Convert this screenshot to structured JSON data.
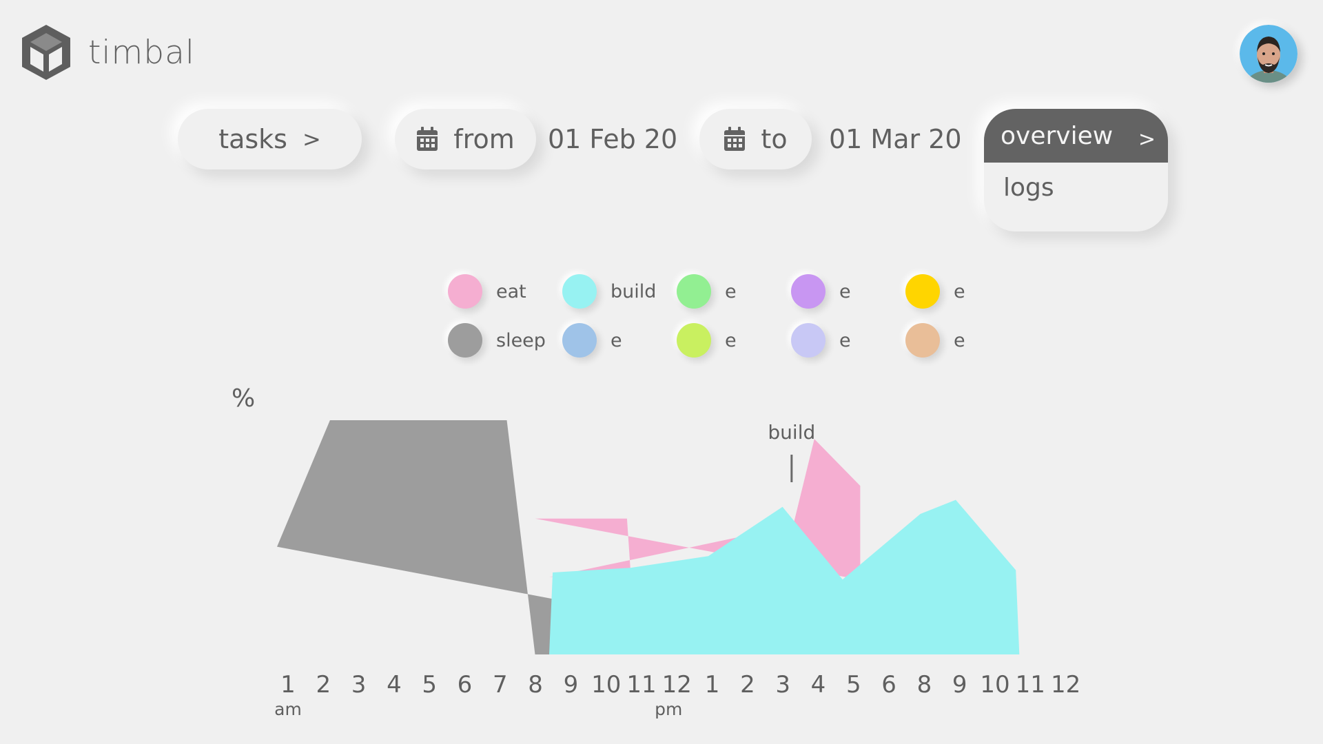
{
  "app": {
    "name": "timbal"
  },
  "toolbar": {
    "tasks_label": "tasks",
    "tasks_arrow": ">",
    "from_label": "from",
    "from_date": "01 Feb 20",
    "to_label": "to",
    "to_date": "01 Mar 20"
  },
  "view_menu": {
    "active": {
      "label": "overview",
      "arrow": ">"
    },
    "items": [
      {
        "label": "logs"
      }
    ]
  },
  "legend": [
    {
      "label": "eat",
      "color": "#f5aed1"
    },
    {
      "label": "build",
      "color": "#97f2f2"
    },
    {
      "label": "e",
      "color": "#92ef92"
    },
    {
      "label": "e",
      "color": "#c896f2"
    },
    {
      "label": "e",
      "color": "#ffd500"
    },
    {
      "label": "sleep",
      "color": "#9d9d9d"
    },
    {
      "label": "e",
      "color": "#9fc3e8"
    },
    {
      "label": "e",
      "color": "#c9f060"
    },
    {
      "label": "e",
      "color": "#c8c8f5"
    },
    {
      "label": "e",
      "color": "#e9be98"
    }
  ],
  "chart": {
    "y_unit": "%",
    "annotation": "build"
  },
  "chart_data": {
    "type": "area",
    "y_unit": "%",
    "x_ticks": [
      "1",
      "2",
      "3",
      "4",
      "5",
      "6",
      "7",
      "8",
      "9",
      "10",
      "11",
      "12",
      "1",
      "2",
      "3",
      "4",
      "5",
      "6",
      "8",
      "9",
      "10",
      "11",
      "12"
    ],
    "x_period_labels": [
      "am",
      "pm"
    ],
    "annotation": {
      "text": "build",
      "x_tick": "3"
    },
    "series": [
      {
        "name": "sleep",
        "color": "#9d9d9d",
        "points": [
          [
            0,
            46
          ],
          [
            1.5,
            100
          ],
          [
            6.5,
            100
          ],
          [
            7.3,
            0
          ],
          [
            7.8,
            0
          ],
          [
            8.0,
            0
          ],
          [
            14,
            0
          ],
          [
            15.2,
            33
          ],
          [
            15.7,
            29
          ],
          [
            16.1,
            0
          ]
        ]
      },
      {
        "name": "eat",
        "color": "#f5aed1",
        "points": [
          [
            7.3,
            58
          ],
          [
            7.5,
            58
          ],
          [
            9.9,
            58
          ],
          [
            10.0,
            36
          ],
          [
            7.7,
            33
          ],
          [
            14.6,
            55
          ],
          [
            15.2,
            92
          ],
          [
            16.5,
            72
          ],
          [
            16.5,
            33
          ],
          [
            16.1,
            33
          ]
        ]
      },
      {
        "name": "build",
        "color": "#97f2f2",
        "points": [
          [
            7.7,
            0
          ],
          [
            7.8,
            35
          ],
          [
            10.0,
            37
          ],
          [
            12.2,
            42
          ],
          [
            14.3,
            63
          ],
          [
            16.0,
            32
          ],
          [
            18.2,
            60
          ],
          [
            19.2,
            66
          ],
          [
            20.9,
            36
          ],
          [
            21.0,
            0
          ]
        ]
      }
    ]
  }
}
